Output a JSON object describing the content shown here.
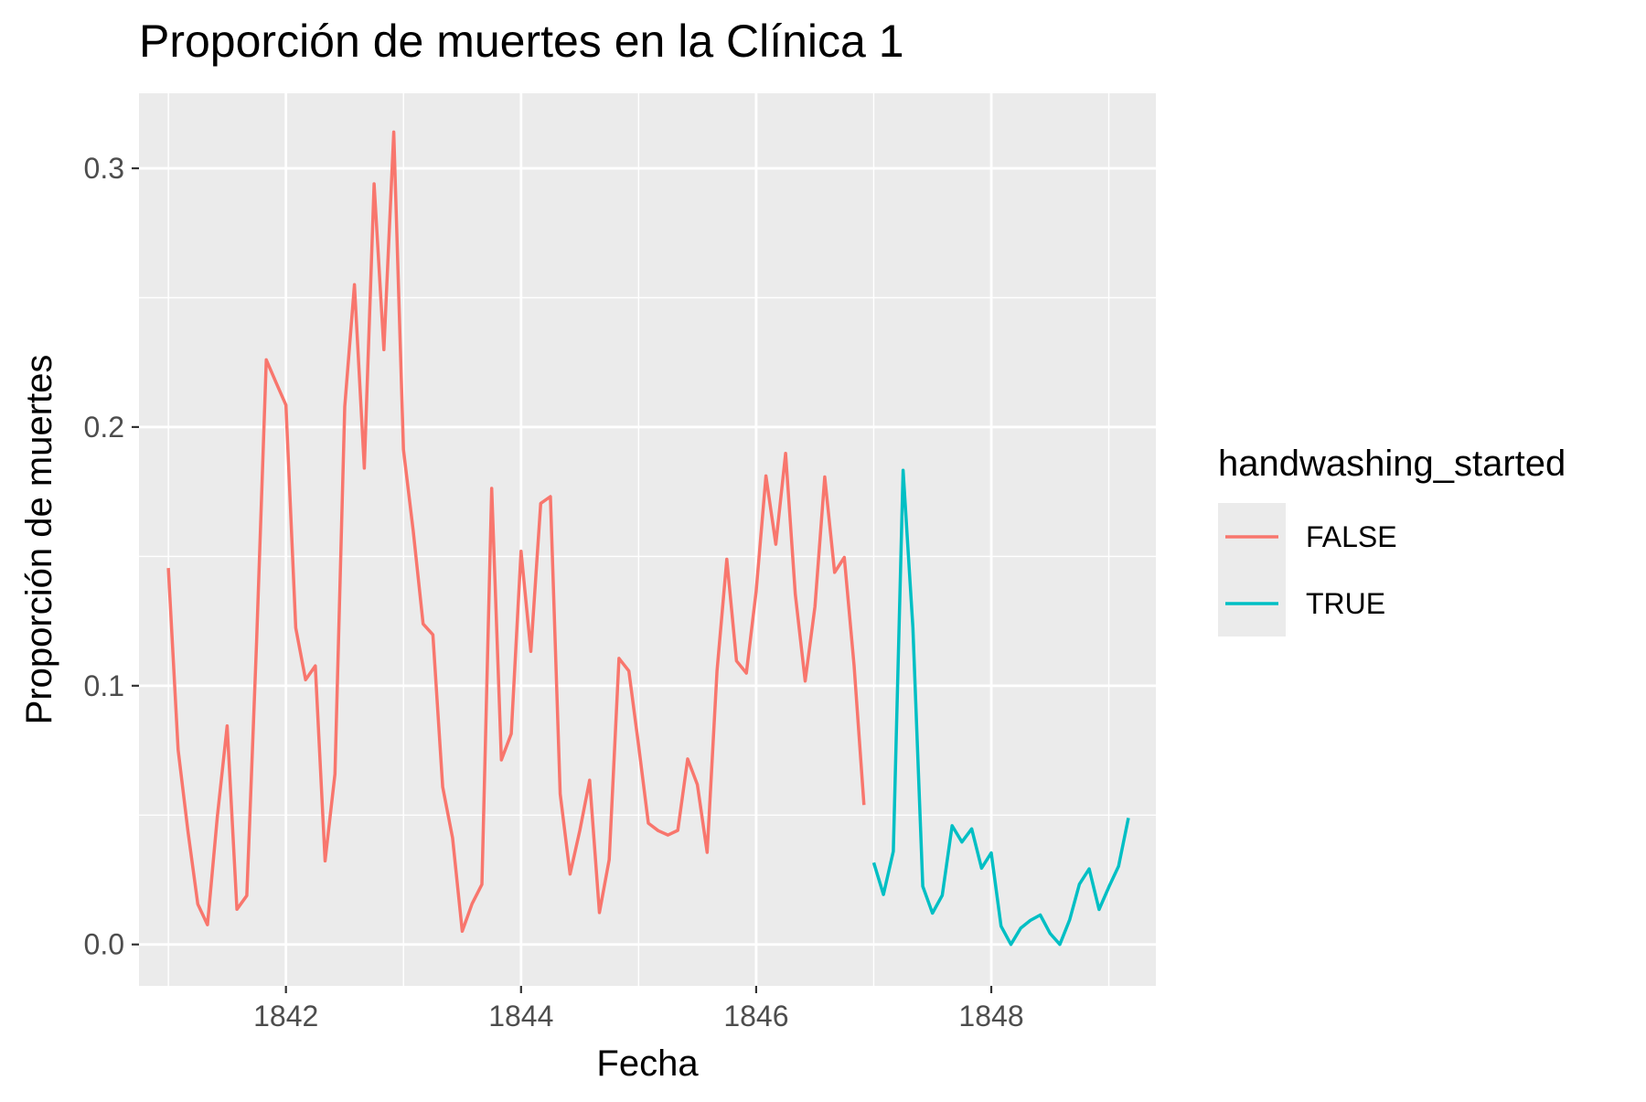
{
  "chart_data": {
    "type": "line",
    "title": "Proporción de muertes en la Clínica 1",
    "xlabel": "Fecha",
    "ylabel": "Proporción de muertes",
    "xlim": [
      1840.75,
      1849.4
    ],
    "ylim": [
      -0.016,
      0.329
    ],
    "x_ticks": [
      1842,
      1844,
      1846,
      1848
    ],
    "y_ticks": [
      0.0,
      0.1,
      0.2,
      0.3
    ],
    "y_tick_labels": [
      "0.0",
      "0.1",
      "0.2",
      "0.3"
    ],
    "grid": true,
    "legend": {
      "title": "handwashing_started",
      "position": "right"
    },
    "series": [
      {
        "name": "FALSE",
        "color": "#F8766D",
        "x": [
          1841.0,
          1841.083,
          1841.167,
          1841.25,
          1841.333,
          1841.417,
          1841.5,
          1841.583,
          1841.667,
          1841.75,
          1841.833,
          1841.917,
          1842.0,
          1842.083,
          1842.167,
          1842.25,
          1842.333,
          1842.417,
          1842.5,
          1842.583,
          1842.667,
          1842.75,
          1842.833,
          1842.917,
          1843.0,
          1843.083,
          1843.167,
          1843.25,
          1843.333,
          1843.417,
          1843.5,
          1843.583,
          1843.667,
          1843.75,
          1843.833,
          1843.917,
          1844.0,
          1844.083,
          1844.167,
          1844.25,
          1844.333,
          1844.417,
          1844.5,
          1844.583,
          1844.667,
          1844.75,
          1844.833,
          1844.917,
          1845.0,
          1845.083,
          1845.167,
          1845.25,
          1845.333,
          1845.417,
          1845.5,
          1845.583,
          1845.667,
          1845.75,
          1845.833,
          1845.917,
          1846.0,
          1846.083,
          1846.167,
          1846.25,
          1846.333,
          1846.417,
          1846.5,
          1846.583,
          1846.667,
          1846.75,
          1846.833,
          1846.917
        ],
        "values": [
          0.1455,
          0.0752,
          0.0436,
          0.0156,
          0.0076,
          0.0495,
          0.0845,
          0.0136,
          0.0189,
          0.117,
          0.226,
          0.2171,
          0.2085,
          0.1224,
          0.1023,
          0.1077,
          0.0323,
          0.0659,
          0.2079,
          0.255,
          0.1841,
          0.294,
          0.2299,
          0.314,
          0.1913,
          0.1598,
          0.1239,
          0.1197,
          0.0609,
          0.0412,
          0.0051,
          0.0157,
          0.0232,
          0.1763,
          0.0713,
          0.0815,
          0.152,
          0.1133,
          0.1705,
          0.1731,
          0.0582,
          0.0272,
          0.0441,
          0.0635,
          0.0123,
          0.0328,
          0.1106,
          0.1057,
          0.0768,
          0.0469,
          0.044,
          0.0423,
          0.0441,
          0.0717,
          0.0618,
          0.0356,
          0.1057,
          0.1489,
          0.1096,
          0.1049,
          0.1365,
          0.1811,
          0.1547,
          0.1898,
          0.1354,
          0.1018,
          0.1306,
          0.1807,
          0.1438,
          0.1496,
          0.1078,
          0.0539
        ]
      },
      {
        "name": "TRUE",
        "color": "#00BFC4",
        "x": [
          1847.0,
          1847.083,
          1847.167,
          1847.25,
          1847.333,
          1847.417,
          1847.5,
          1847.583,
          1847.667,
          1847.75,
          1847.833,
          1847.917,
          1848.0,
          1848.083,
          1848.167,
          1848.25,
          1848.333,
          1848.417,
          1848.5,
          1848.583,
          1848.667,
          1848.75,
          1848.833,
          1848.917,
          1849.0,
          1849.083,
          1849.167
        ],
        "values": [
          0.0316,
          0.0193,
          0.036,
          0.1833,
          0.1225,
          0.0225,
          0.0121,
          0.019,
          0.0459,
          0.0396,
          0.0447,
          0.0295,
          0.0354,
          0.0071,
          0.0,
          0.0063,
          0.0093,
          0.0114,
          0.0043,
          0.0,
          0.0096,
          0.0233,
          0.0292,
          0.0135,
          0.0222,
          0.0302,
          0.0489
        ]
      }
    ]
  }
}
